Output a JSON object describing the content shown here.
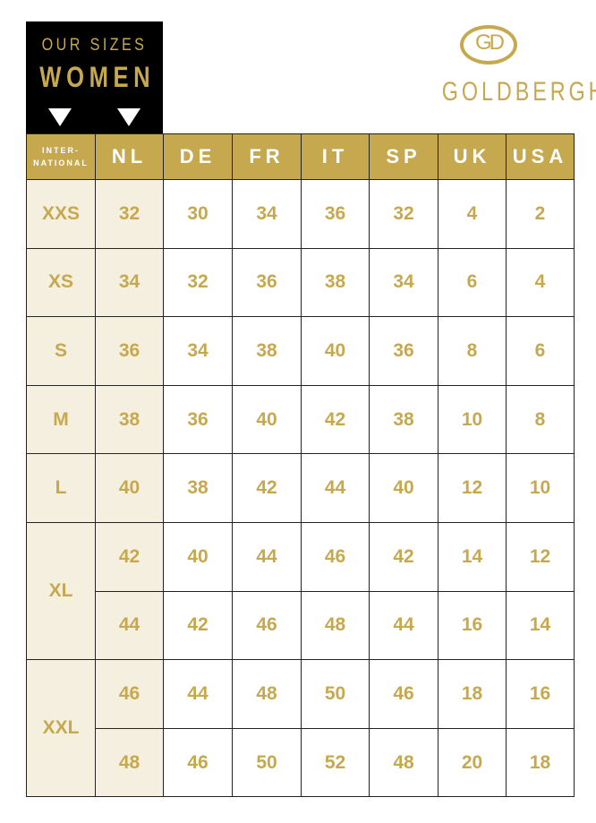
{
  "header": {
    "line1": "OUR SIZES",
    "line2": "WOMEN"
  },
  "brand": {
    "logo_text": "GD",
    "name": "GOLDBERGH"
  },
  "colors": {
    "gold": "#c6a94f",
    "cream": "#f5efe0",
    "black": "#000000"
  },
  "columns": [
    "INTER-NATIONAL",
    "NL",
    "DE",
    "FR",
    "IT",
    "SP",
    "UK",
    "USA"
  ],
  "rows": [
    {
      "intl": "XXS",
      "span": 1,
      "values": [
        "32",
        "30",
        "34",
        "36",
        "32",
        "4",
        "2"
      ]
    },
    {
      "intl": "XS",
      "span": 1,
      "values": [
        "34",
        "32",
        "36",
        "38",
        "34",
        "6",
        "4"
      ]
    },
    {
      "intl": "S",
      "span": 1,
      "values": [
        "36",
        "34",
        "38",
        "40",
        "36",
        "8",
        "6"
      ]
    },
    {
      "intl": "M",
      "span": 1,
      "values": [
        "38",
        "36",
        "40",
        "42",
        "38",
        "10",
        "8"
      ]
    },
    {
      "intl": "L",
      "span": 1,
      "values": [
        "40",
        "38",
        "42",
        "44",
        "40",
        "12",
        "10"
      ]
    },
    {
      "intl": "XL",
      "span": 2,
      "values": [
        "42",
        "40",
        "44",
        "46",
        "42",
        "14",
        "12"
      ]
    },
    {
      "intl": null,
      "span": 0,
      "values": [
        "44",
        "42",
        "46",
        "48",
        "44",
        "16",
        "14"
      ]
    },
    {
      "intl": "XXL",
      "span": 2,
      "values": [
        "46",
        "44",
        "48",
        "50",
        "46",
        "18",
        "16"
      ]
    },
    {
      "intl": null,
      "span": 0,
      "values": [
        "48",
        "46",
        "50",
        "52",
        "48",
        "20",
        "18"
      ]
    }
  ]
}
